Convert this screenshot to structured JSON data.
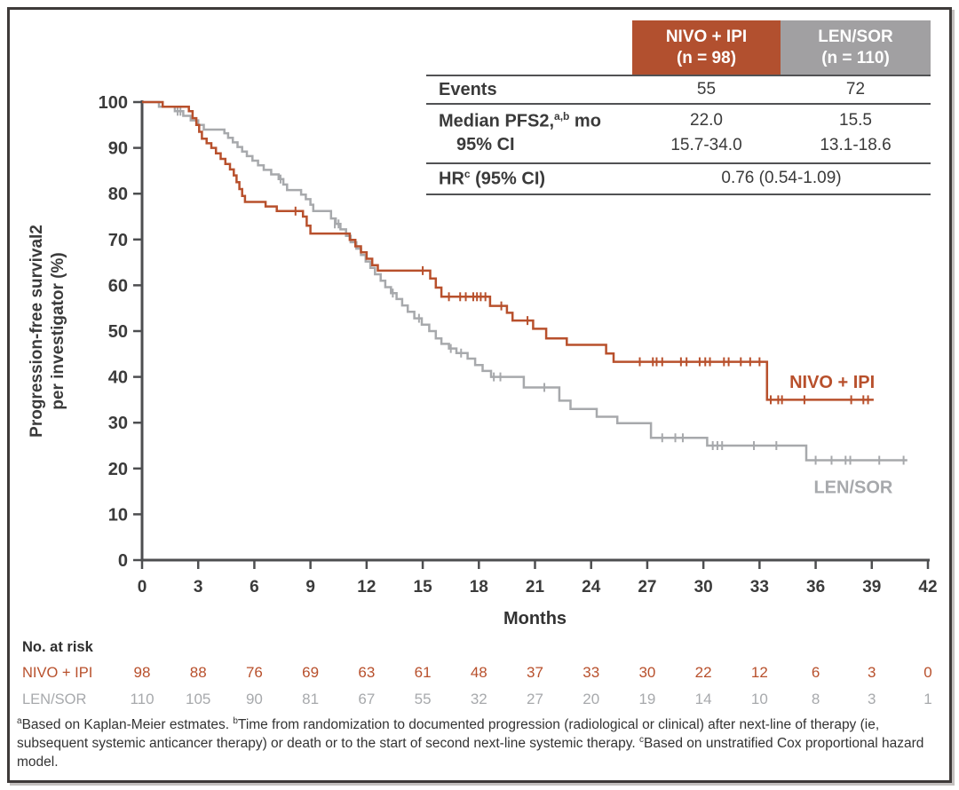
{
  "stats_table": {
    "columns": [
      {
        "name": "NIVO + IPI",
        "n": "(n = 98)",
        "color": "#b2502f"
      },
      {
        "name": "LEN/SOR",
        "n": "(n = 110)",
        "color": "#a1a0a2"
      }
    ],
    "rows": {
      "events": {
        "label": "Events",
        "values": [
          "55",
          "72"
        ]
      },
      "median": {
        "label_pre": "Median PFS2,",
        "label_sup": "a,b",
        "label_post": " mo",
        "values": [
          "22.0",
          "15.5"
        ]
      },
      "ci": {
        "label": "95% CI",
        "values": [
          "15.7-34.0",
          "13.1-18.6"
        ]
      },
      "hr": {
        "label_pre": "HR",
        "label_sup": "c",
        "label_post": " (95% CI)",
        "value": "0.76 (0.54-1.09)"
      }
    }
  },
  "chart_data": {
    "type": "line",
    "subtype": "kaplan-meier-step",
    "title": "",
    "xlabel": "Months",
    "ylabel_lines": [
      "Progression-free survival2",
      "per investigator (%)"
    ],
    "xlim": [
      0,
      42
    ],
    "ylim": [
      0,
      100
    ],
    "xticks": [
      0,
      3,
      6,
      9,
      12,
      15,
      18,
      21,
      24,
      27,
      30,
      33,
      36,
      39,
      42
    ],
    "yticks": [
      0,
      10,
      20,
      30,
      40,
      50,
      60,
      70,
      80,
      90,
      100
    ],
    "grid": false,
    "at_risk_label": "No. at risk",
    "series": [
      {
        "id": "nivo-ipi",
        "name": "NIVO + IPI",
        "color": "#b8502c",
        "label_anchor": [
          34.6,
          37.6
        ],
        "points": [
          [
            0,
            100
          ],
          [
            1.1,
            99
          ],
          [
            2.5,
            98
          ],
          [
            2.7,
            96.5
          ],
          [
            2.9,
            95
          ],
          [
            3.05,
            93.5
          ],
          [
            3.2,
            92
          ],
          [
            3.45,
            91
          ],
          [
            3.7,
            90
          ],
          [
            3.95,
            88.8
          ],
          [
            4.2,
            87.6
          ],
          [
            4.45,
            86.5
          ],
          [
            4.7,
            85.3
          ],
          [
            4.9,
            84
          ],
          [
            5.05,
            82.5
          ],
          [
            5.2,
            81
          ],
          [
            5.35,
            79.5
          ],
          [
            5.5,
            78.2
          ],
          [
            6.6,
            77.2
          ],
          [
            7.2,
            76.2
          ],
          [
            8.6,
            75
          ],
          [
            8.8,
            73
          ],
          [
            9.0,
            71.3
          ],
          [
            11.1,
            69.9
          ],
          [
            11.4,
            68.5
          ],
          [
            11.7,
            67.2
          ],
          [
            12.0,
            65.8
          ],
          [
            12.3,
            64.4
          ],
          [
            12.6,
            63.2
          ],
          [
            15.4,
            61.5
          ],
          [
            15.7,
            59.5
          ],
          [
            16.0,
            57.5
          ],
          [
            18.6,
            55.5
          ],
          [
            19.5,
            54
          ],
          [
            19.8,
            52.3
          ],
          [
            20.9,
            50.5
          ],
          [
            21.6,
            48.4
          ],
          [
            22.7,
            47
          ],
          [
            24.8,
            45.1
          ],
          [
            25.2,
            43.3
          ],
          [
            33.4,
            35
          ],
          [
            39.1,
            35
          ]
        ],
        "censors": [
          [
            8.2,
            76.2
          ],
          [
            15.0,
            63.2
          ],
          [
            16.4,
            57.5
          ],
          [
            17.0,
            57.5
          ],
          [
            17.3,
            57.5
          ],
          [
            17.7,
            57.5
          ],
          [
            17.9,
            57.5
          ],
          [
            18.1,
            57.5
          ],
          [
            18.35,
            57.5
          ],
          [
            19.2,
            55.5
          ],
          [
            20.6,
            52.3
          ],
          [
            26.6,
            43.3
          ],
          [
            27.3,
            43.3
          ],
          [
            27.5,
            43.3
          ],
          [
            27.8,
            43.3
          ],
          [
            28.8,
            43.3
          ],
          [
            29.1,
            43.3
          ],
          [
            29.8,
            43.3
          ],
          [
            30.1,
            43.3
          ],
          [
            30.35,
            43.3
          ],
          [
            31.1,
            43.3
          ],
          [
            31.35,
            43.3
          ],
          [
            32.0,
            43.3
          ],
          [
            32.5,
            43.3
          ],
          [
            33.0,
            43.3
          ],
          [
            33.6,
            35
          ],
          [
            34.0,
            35
          ],
          [
            34.2,
            35
          ],
          [
            35.4,
            35
          ],
          [
            37.9,
            35
          ],
          [
            38.55,
            35
          ],
          [
            38.8,
            35
          ]
        ],
        "at_risk": [
          98,
          88,
          76,
          69,
          63,
          61,
          48,
          37,
          33,
          30,
          22,
          12,
          6,
          3,
          0
        ]
      },
      {
        "id": "len-sor",
        "name": "LEN/SOR",
        "color": "#a7a9ac",
        "label_anchor": [
          35.9,
          14.6
        ],
        "points": [
          [
            0,
            100
          ],
          [
            0.9,
            99
          ],
          [
            1.75,
            98
          ],
          [
            2.2,
            97
          ],
          [
            2.6,
            96
          ],
          [
            3.0,
            95
          ],
          [
            3.3,
            94
          ],
          [
            4.4,
            93.2
          ],
          [
            4.6,
            92.2
          ],
          [
            4.85,
            91.2
          ],
          [
            5.1,
            90.2
          ],
          [
            5.35,
            89.2
          ],
          [
            5.6,
            88.2
          ],
          [
            5.9,
            87.2
          ],
          [
            6.2,
            86.2
          ],
          [
            6.5,
            85.2
          ],
          [
            6.9,
            84.2
          ],
          [
            7.3,
            83.2
          ],
          [
            7.55,
            82
          ],
          [
            7.75,
            80.8
          ],
          [
            8.5,
            79.8
          ],
          [
            8.75,
            78.8
          ],
          [
            9.0,
            77.6
          ],
          [
            9.15,
            76.2
          ],
          [
            10.1,
            74.6
          ],
          [
            10.35,
            73.4
          ],
          [
            10.6,
            72.2
          ],
          [
            10.9,
            70.8
          ],
          [
            11.15,
            69.4
          ],
          [
            11.45,
            68
          ],
          [
            11.7,
            66.6
          ],
          [
            11.95,
            65.2
          ],
          [
            12.2,
            63.8
          ],
          [
            12.45,
            62.4
          ],
          [
            12.75,
            61
          ],
          [
            13.0,
            59.6
          ],
          [
            13.3,
            58.3
          ],
          [
            13.6,
            57
          ],
          [
            13.9,
            55.6
          ],
          [
            14.2,
            54.2
          ],
          [
            14.55,
            52.8
          ],
          [
            14.95,
            51.4
          ],
          [
            15.35,
            50
          ],
          [
            15.7,
            48.4
          ],
          [
            16.0,
            47.2
          ],
          [
            16.4,
            46.2
          ],
          [
            16.8,
            45.2
          ],
          [
            17.4,
            44
          ],
          [
            17.8,
            42.6
          ],
          [
            18.2,
            41.3
          ],
          [
            18.65,
            40
          ],
          [
            20.4,
            37.7
          ],
          [
            22.3,
            34.8
          ],
          [
            22.9,
            33
          ],
          [
            24.3,
            31.3
          ],
          [
            25.4,
            29.9
          ],
          [
            27.2,
            26.7
          ],
          [
            30.2,
            25
          ],
          [
            35.5,
            21.8
          ],
          [
            40.9,
            21.8
          ]
        ],
        "censors": [
          [
            1.9,
            98
          ],
          [
            2.05,
            98
          ],
          [
            7.4,
            83.2
          ],
          [
            10.3,
            73.4
          ],
          [
            10.5,
            73.4
          ],
          [
            13.4,
            58.3
          ],
          [
            14.8,
            52.8
          ],
          [
            16.5,
            46.2
          ],
          [
            17.05,
            45.2
          ],
          [
            18.8,
            40
          ],
          [
            19.15,
            40
          ],
          [
            21.5,
            37.7
          ],
          [
            27.8,
            26.7
          ],
          [
            28.5,
            26.7
          ],
          [
            28.9,
            26.7
          ],
          [
            30.5,
            25
          ],
          [
            30.75,
            25
          ],
          [
            31.0,
            25
          ],
          [
            32.7,
            25
          ],
          [
            33.9,
            25
          ],
          [
            36.0,
            21.8
          ],
          [
            36.85,
            21.8
          ],
          [
            37.6,
            21.8
          ],
          [
            37.85,
            21.8
          ],
          [
            39.4,
            21.8
          ],
          [
            40.7,
            21.8
          ]
        ],
        "at_risk": [
          110,
          105,
          90,
          81,
          67,
          55,
          32,
          27,
          20,
          19,
          14,
          10,
          8,
          3,
          1
        ]
      }
    ]
  },
  "footnote": {
    "segments": [
      {
        "sup": "a",
        "text": "Based on Kaplan-Meier estmates. "
      },
      {
        "sup": "b",
        "text": "Time from randomization to documented progression (radiological or clinical) after next-line of therapy (ie, subsequent systemic anticancer therapy) or death or to the start of second next-line systemic therapy. "
      },
      {
        "sup": "c",
        "text": "Based on unstratified Cox proportional hazard model."
      }
    ]
  }
}
